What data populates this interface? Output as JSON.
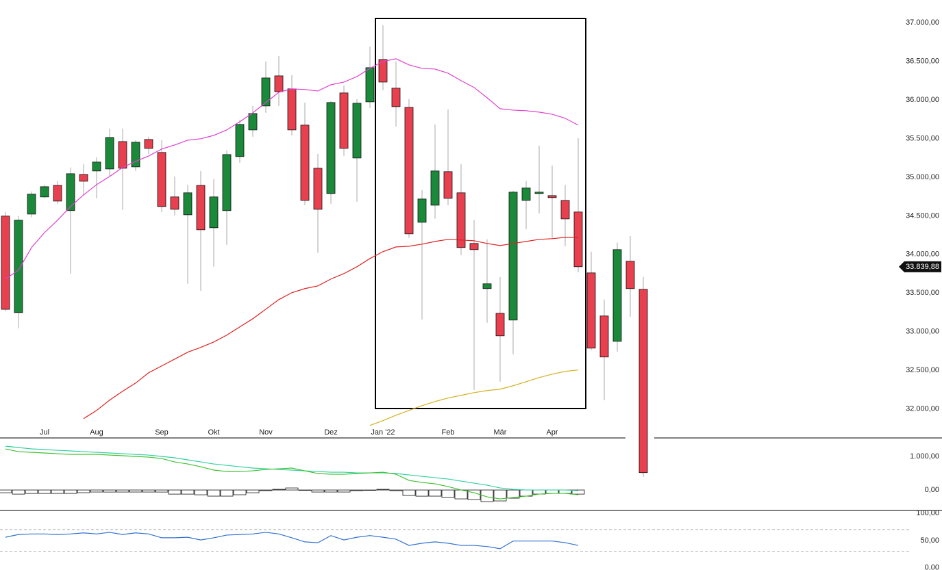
{
  "chart_data": [
    {
      "type": "candlestick",
      "categories": [
        null,
        null,
        null,
        "Jul",
        null,
        null,
        null,
        "Aug",
        null,
        null,
        null,
        null,
        "Sep",
        null,
        null,
        null,
        "Okt",
        null,
        null,
        null,
        "Nov",
        null,
        null,
        null,
        null,
        "Dez",
        null,
        null,
        null,
        "Jan '22",
        null,
        null,
        null,
        null,
        "Feb",
        null,
        null,
        null,
        "Mär",
        null,
        null,
        null,
        "Apr",
        null,
        null,
        null,
        null,
        null,
        null,
        null
      ],
      "open": [
        34496,
        33248,
        34522,
        34744,
        34894,
        34567,
        35035,
        35080,
        35106,
        35460,
        35133,
        35487,
        35319,
        34744,
        34513,
        34894,
        34345,
        34567,
        35266,
        35611,
        35921,
        36310,
        36142,
        35673,
        35115,
        34788,
        36089,
        35248,
        35974,
        36522,
        36151,
        35903,
        34416,
        34637,
        35071,
        34797,
        34142,
        33558,
        33239,
        33151,
        34699,
        34788,
        34761,
        34699,
        34549,
        33761,
        33204,
        32876,
        33912,
        33549
      ],
      "high": [
        34550,
        34500,
        34815,
        34900,
        34950,
        35125,
        35168,
        35257,
        35628,
        35628,
        35478,
        35522,
        35478,
        35009,
        34900,
        35080,
        34974,
        35345,
        35744,
        35921,
        36496,
        36567,
        36319,
        35965,
        35300,
        35983,
        36186,
        36009,
        36691,
        36965,
        36496,
        36009,
        34832,
        35682,
        35876,
        35168,
        34443,
        34195,
        33708,
        34823,
        34950,
        35407,
        35150,
        34900,
        35505,
        34036,
        33416,
        34151,
        34239,
        33708
      ],
      "low": [
        33265,
        33045,
        34480,
        34725,
        34655,
        33752,
        34770,
        34725,
        35009,
        34575,
        35080,
        35300,
        34549,
        34504,
        33620,
        33531,
        33841,
        34124,
        35186,
        35522,
        35832,
        35921,
        35540,
        34637,
        34018,
        34655,
        35275,
        34682,
        35894,
        36124,
        35655,
        34213,
        33159,
        34461,
        34637,
        33991,
        32248,
        33115,
        32354,
        32708,
        34327,
        34531,
        34213,
        34106,
        33770,
        32761,
        32115,
        32743,
        33195,
        31124
      ],
      "close": [
        33290,
        34443,
        34780,
        34876,
        34690,
        35044,
        34947,
        35195,
        35513,
        35115,
        35452,
        35372,
        34620,
        34584,
        34797,
        34319,
        34744,
        35292,
        35682,
        35823,
        36283,
        36106,
        35611,
        34699,
        34584,
        35965,
        35372,
        35956,
        36416,
        36230,
        35912,
        34266,
        34717,
        35080,
        34726,
        34089,
        34062,
        33620,
        32947,
        34806,
        34859,
        34806,
        34735,
        34460,
        33841,
        32788,
        32673,
        34062,
        33558,
        31177
      ],
      "up_color": "#1a8a3a",
      "down_color": "#e8404f",
      "series": [
        {
          "color": "#e040d0",
          "values": [
            33682,
            33797,
            34089,
            34283,
            34443,
            34620,
            34770,
            34903,
            35009,
            35124,
            35204,
            35274,
            35363,
            35416,
            35478,
            35496,
            35540,
            35611,
            35717,
            35832,
            35965,
            36098,
            36142,
            36133,
            36115,
            36195,
            36230,
            36301,
            36407,
            36496,
            36531,
            36452,
            36407,
            36398,
            36345,
            36248,
            36160,
            36027,
            35885,
            35867,
            35859,
            35841,
            35814,
            35761,
            35673,
            null,
            null,
            null,
            null,
            null
          ]
        },
        {
          "color": "#e02020",
          "values": [
            null,
            null,
            null,
            null,
            null,
            null,
            31876,
            31982,
            32115,
            32230,
            32336,
            32469,
            32558,
            32646,
            32735,
            32797,
            32867,
            32956,
            33062,
            33168,
            33292,
            33416,
            33505,
            33558,
            33593,
            33682,
            33752,
            33841,
            33947,
            34036,
            34097,
            34106,
            34133,
            34168,
            34195,
            34186,
            34177,
            34142,
            34115,
            34142,
            34168,
            34195,
            34204,
            34221,
            34221,
            null,
            null,
            null,
            null,
            null
          ]
        },
        {
          "color": "#d4b020",
          "values": [
            null,
            null,
            null,
            null,
            null,
            null,
            null,
            null,
            null,
            null,
            null,
            null,
            null,
            null,
            null,
            null,
            null,
            null,
            null,
            null,
            null,
            null,
            null,
            null,
            null,
            null,
            null,
            null,
            31788,
            31850,
            31920,
            31982,
            32044,
            32097,
            32142,
            32177,
            32212,
            32239,
            32257,
            32301,
            32354,
            32407,
            32451,
            32487,
            32505,
            null,
            null,
            null,
            null,
            null
          ]
        }
      ],
      "ylim": [
        31750,
        37150
      ],
      "yticks": [
        {
          "value": 32000,
          "label": "32.000,00"
        },
        {
          "value": 32500,
          "label": "32.500,00"
        },
        {
          "value": 33000,
          "label": "33.000,00"
        },
        {
          "value": 33500,
          "label": "33.500,00"
        },
        {
          "value": 34000,
          "label": "34.000,00"
        },
        {
          "value": 34500,
          "label": "34.500,00"
        },
        {
          "value": 35000,
          "label": "35.000,00"
        },
        {
          "value": 35500,
          "label": "35.500,00"
        },
        {
          "value": 36000,
          "label": "36.000,00"
        },
        {
          "value": 36500,
          "label": "36.500,00"
        },
        {
          "value": 37000,
          "label": "37.000,00"
        }
      ],
      "last_price": {
        "value": 33839.88,
        "label": "33.839,88"
      }
    },
    {
      "type": "macd",
      "bars": {
        "color": "#ffffff",
        "values": [
          -82,
          -123,
          -102,
          -102,
          -102,
          -102,
          -81,
          -61,
          -62,
          -61,
          -61,
          -61,
          -62,
          -123,
          -123,
          -143,
          -183,
          -183,
          -142,
          -82,
          -20,
          20,
          61,
          0,
          -61,
          -61,
          -61,
          -20,
          0,
          20,
          -21,
          -163,
          -184,
          -183,
          -224,
          -265,
          -286,
          -347,
          -326,
          -244,
          -184,
          -122,
          -102,
          -102,
          -123
        ]
      },
      "series": [
        {
          "color": "#30d0a0",
          "values": [
            1306,
            1265,
            1224,
            1204,
            1183,
            1163,
            1142,
            1122,
            1102,
            1081,
            1061,
            1040,
            1000,
            959,
            898,
            836,
            775,
            734,
            693,
            653,
            632,
            612,
            592,
            571,
            551,
            530,
            530,
            510,
            510,
            510,
            490,
            449,
            408,
            367,
            326,
            265,
            204,
            143,
            61,
            20,
            0,
            0,
            0,
            0,
            -20
          ]
        },
        {
          "color": "#40c030",
          "values": [
            1224,
            1142,
            1122,
            1102,
            1081,
            1061,
            1061,
            1061,
            1040,
            1020,
            1000,
            979,
            938,
            836,
            775,
            693,
            592,
            551,
            551,
            571,
            612,
            632,
            653,
            571,
            490,
            469,
            469,
            490,
            510,
            530,
            469,
            286,
            224,
            184,
            102,
            0,
            -82,
            -204,
            -265,
            -224,
            -184,
            -122,
            -102,
            -102,
            -143
          ]
        }
      ],
      "ylim": [
        -590,
        1510
      ],
      "yticks": [
        {
          "value": 0,
          "label": "0,00"
        },
        {
          "value": 1000,
          "label": "1.000,00"
        }
      ]
    },
    {
      "type": "line",
      "series": [
        {
          "color": "#3070d0",
          "values": [
            56,
            61,
            62,
            62,
            61,
            62,
            64,
            62,
            65,
            61,
            64,
            62,
            55,
            55,
            56,
            51,
            55,
            60,
            61,
            62,
            65,
            62,
            55,
            47.5,
            46,
            59,
            51,
            56,
            59,
            56,
            52.5,
            41,
            45,
            47.5,
            45,
            41,
            41,
            39,
            35,
            49,
            49,
            49,
            49,
            46,
            41
          ]
        }
      ],
      "levels": [
        70,
        30
      ],
      "ylim": [
        -4,
        105
      ],
      "yticks": [
        {
          "value": 0,
          "label": "0,00"
        },
        {
          "value": 50,
          "label": "50,00"
        },
        {
          "value": 100,
          "label": "100,00"
        }
      ]
    }
  ]
}
